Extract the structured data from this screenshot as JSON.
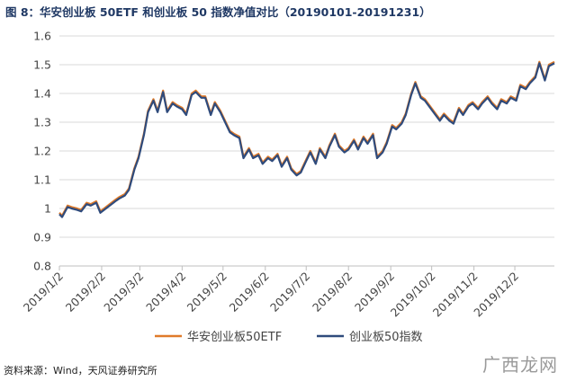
{
  "title": "图 8：华安创业板 50ETF 和创业板 50 指数净值对比（20190101-20191231）",
  "source": "资料来源：Wind，天风证券研究所",
  "watermark": "广西龙网",
  "chart_data": {
    "type": "line",
    "title": "图 8：华安创业板 50ETF 和创业板 50 指数净值对比（20190101-20191231）",
    "ylim": [
      0.8,
      1.6
    ],
    "yticks": [
      "0.8",
      "0.9",
      "1",
      "1.1",
      "1.2",
      "1.3",
      "1.4",
      "1.5",
      "1.6"
    ],
    "xticks": [
      "2019/1/2",
      "2019/2/2",
      "2019/3/2",
      "2019/4/2",
      "2019/5/2",
      "2019/6/2",
      "2019/7/2",
      "2019/8/2",
      "2019/9/2",
      "2019/10/2",
      "2019/11/2",
      "2019/12/2"
    ],
    "grid": true,
    "legend_position": "bottom",
    "x": [
      "2019/1/2",
      "2019/1/4",
      "2019/1/8",
      "2019/1/11",
      "2019/1/15",
      "2019/1/18",
      "2019/1/22",
      "2019/1/25",
      "2019/1/29",
      "2019/2/1",
      "2019/2/12",
      "2019/2/15",
      "2019/2/19",
      "2019/2/22",
      "2019/2/26",
      "2019/3/1",
      "2019/3/5",
      "2019/3/8",
      "2019/3/12",
      "2019/3/15",
      "2019/3/19",
      "2019/3/22",
      "2019/3/26",
      "2019/3/29",
      "2019/4/2",
      "2019/4/5",
      "2019/4/9",
      "2019/4/12",
      "2019/4/16",
      "2019/4/19",
      "2019/4/23",
      "2019/4/26",
      "2019/4/30",
      "2019/5/7",
      "2019/5/10",
      "2019/5/14",
      "2019/5/17",
      "2019/5/21",
      "2019/5/24",
      "2019/5/28",
      "2019/5/31",
      "2019/6/4",
      "2019/6/7",
      "2019/6/11",
      "2019/6/14",
      "2019/6/18",
      "2019/6/21",
      "2019/6/25",
      "2019/6/28",
      "2019/7/2",
      "2019/7/5",
      "2019/7/9",
      "2019/7/12",
      "2019/7/16",
      "2019/7/19",
      "2019/7/23",
      "2019/7/26",
      "2019/7/30",
      "2019/8/2",
      "2019/8/6",
      "2019/8/9",
      "2019/8/13",
      "2019/8/16",
      "2019/8/20",
      "2019/8/23",
      "2019/8/27",
      "2019/8/30",
      "2019/9/3",
      "2019/9/6",
      "2019/9/10",
      "2019/9/13",
      "2019/9/17",
      "2019/9/20",
      "2019/9/24",
      "2019/9/27",
      "2019/10/8",
      "2019/10/11",
      "2019/10/15",
      "2019/10/18",
      "2019/10/22",
      "2019/10/25",
      "2019/10/29",
      "2019/11/1",
      "2019/11/5",
      "2019/11/8",
      "2019/11/12",
      "2019/11/15",
      "2019/11/19",
      "2019/11/22",
      "2019/11/26",
      "2019/11/29",
      "2019/12/3",
      "2019/12/6",
      "2019/12/10",
      "2019/12/13",
      "2019/12/17",
      "2019/12/20",
      "2019/12/24",
      "2019/12/27",
      "2019/12/31"
    ],
    "series": [
      {
        "name": "华安创业板50ETF",
        "color": "#e07b2a",
        "values": [
          0.985,
          0.975,
          1.01,
          1.005,
          1.0,
          0.995,
          1.02,
          1.015,
          1.025,
          0.99,
          1.03,
          1.04,
          1.05,
          1.07,
          1.14,
          1.18,
          1.26,
          1.34,
          1.38,
          1.34,
          1.41,
          1.34,
          1.37,
          1.36,
          1.35,
          1.33,
          1.4,
          1.41,
          1.39,
          1.39,
          1.33,
          1.37,
          1.34,
          1.27,
          1.26,
          1.25,
          1.18,
          1.21,
          1.18,
          1.19,
          1.16,
          1.18,
          1.17,
          1.19,
          1.15,
          1.18,
          1.14,
          1.12,
          1.13,
          1.17,
          1.2,
          1.16,
          1.21,
          1.18,
          1.22,
          1.26,
          1.22,
          1.2,
          1.21,
          1.24,
          1.21,
          1.25,
          1.23,
          1.26,
          1.18,
          1.2,
          1.23,
          1.29,
          1.28,
          1.3,
          1.33,
          1.4,
          1.44,
          1.39,
          1.38,
          1.31,
          1.33,
          1.31,
          1.3,
          1.35,
          1.33,
          1.36,
          1.37,
          1.35,
          1.37,
          1.39,
          1.37,
          1.35,
          1.38,
          1.37,
          1.39,
          1.38,
          1.43,
          1.42,
          1.44,
          1.46,
          1.51,
          1.45,
          1.5,
          1.51
        ]
      },
      {
        "name": "创业板50指数",
        "color": "#2f4b7c",
        "values": [
          0.98,
          0.97,
          1.005,
          1.0,
          0.995,
          0.99,
          1.015,
          1.01,
          1.02,
          0.985,
          1.025,
          1.035,
          1.045,
          1.065,
          1.135,
          1.175,
          1.255,
          1.335,
          1.375,
          1.335,
          1.405,
          1.335,
          1.365,
          1.355,
          1.345,
          1.325,
          1.395,
          1.405,
          1.385,
          1.385,
          1.325,
          1.365,
          1.335,
          1.265,
          1.255,
          1.245,
          1.175,
          1.205,
          1.175,
          1.185,
          1.155,
          1.175,
          1.165,
          1.185,
          1.145,
          1.175,
          1.135,
          1.115,
          1.125,
          1.165,
          1.195,
          1.155,
          1.205,
          1.175,
          1.215,
          1.255,
          1.215,
          1.195,
          1.205,
          1.235,
          1.205,
          1.245,
          1.225,
          1.255,
          1.175,
          1.195,
          1.225,
          1.285,
          1.275,
          1.295,
          1.325,
          1.395,
          1.435,
          1.385,
          1.375,
          1.305,
          1.325,
          1.305,
          1.295,
          1.345,
          1.325,
          1.355,
          1.365,
          1.345,
          1.365,
          1.385,
          1.365,
          1.345,
          1.375,
          1.365,
          1.385,
          1.375,
          1.425,
          1.415,
          1.435,
          1.455,
          1.505,
          1.445,
          1.495,
          1.505
        ]
      }
    ]
  }
}
